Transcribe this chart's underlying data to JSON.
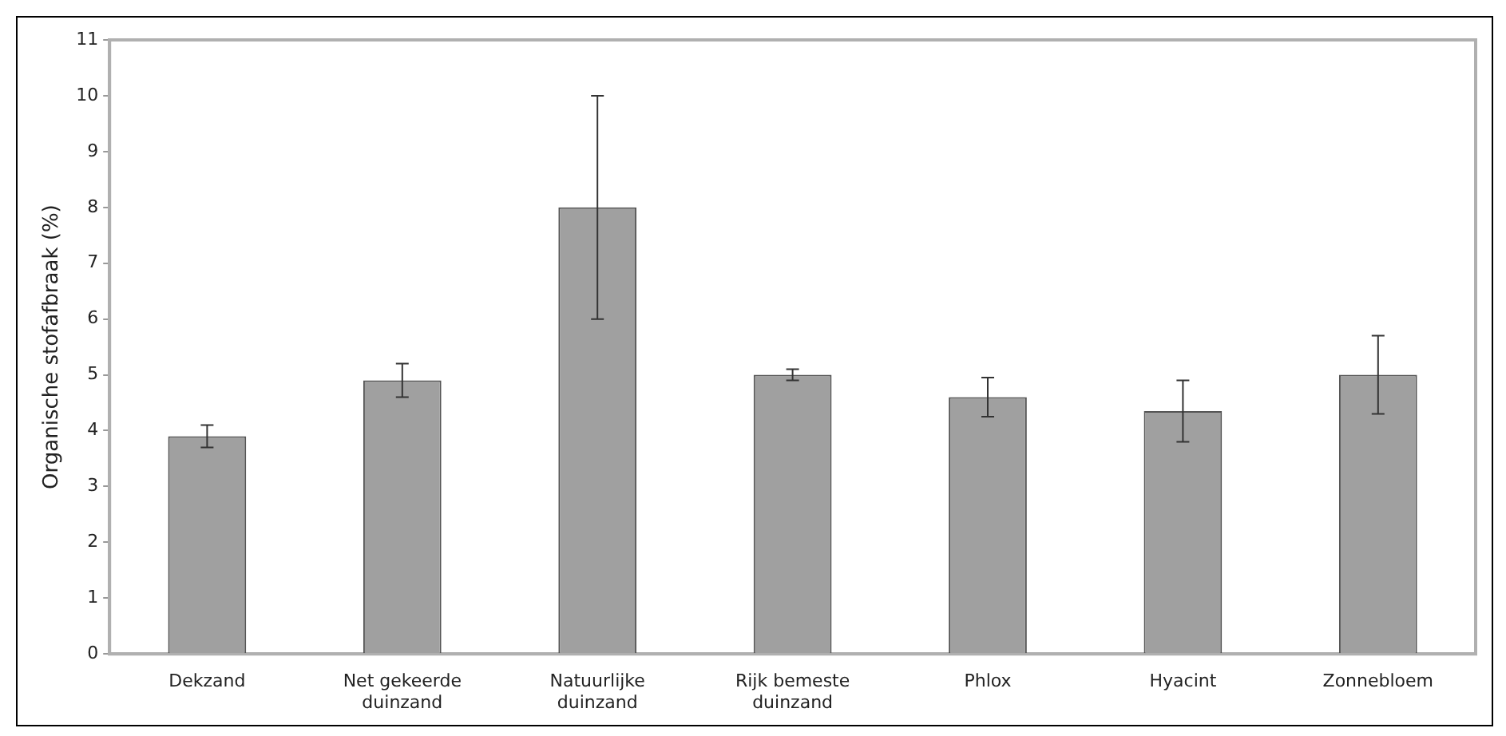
{
  "chart_data": {
    "type": "bar",
    "ylabel": "Organische stofafbraak (%)",
    "categories": [
      "Dekzand",
      "Net gekeerde\nduinzand",
      "Natuurlijke\nduinzand",
      "Rijk bemeste\nduinzand",
      "Phlox",
      "Hyacint",
      "Zonnebloem"
    ],
    "values": [
      3.9,
      4.9,
      8.0,
      5.0,
      4.6,
      4.35,
      5.0
    ],
    "errors": [
      0.2,
      0.3,
      2.0,
      0.1,
      0.35,
      0.55,
      0.7
    ],
    "color": "#a0a0a0",
    "ylim": [
      0,
      11
    ],
    "yticks": [
      0,
      1,
      2,
      3,
      4,
      5,
      6,
      7,
      8,
      9,
      10,
      11
    ],
    "grid": false,
    "legend": false
  }
}
